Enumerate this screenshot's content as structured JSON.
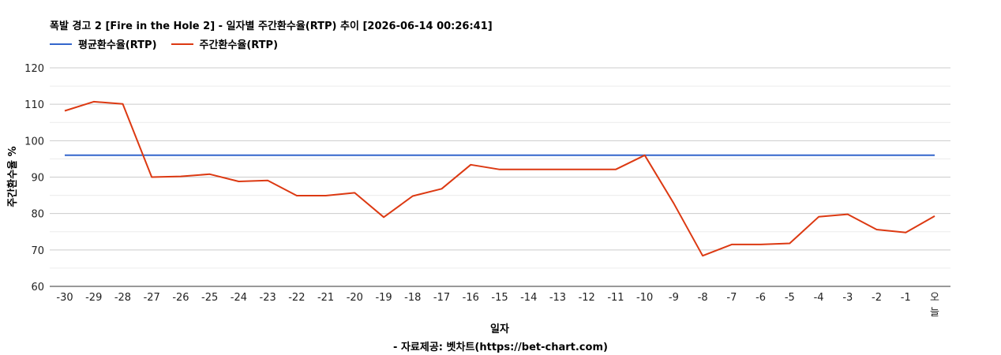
{
  "chart_data": {
    "type": "line",
    "title": "폭발 경고 2 [Fire in the Hole 2] - 일자별 주간환수율(RTP) 추이 [2026-06-14 00:26:41]",
    "xlabel": "일자",
    "ylabel": "주간환수율 %",
    "ylim": [
      60,
      120
    ],
    "yticks": [
      60,
      70,
      80,
      90,
      100,
      110,
      120
    ],
    "grid": true,
    "legend_position": "top-left",
    "categories": [
      "-30",
      "-29",
      "-28",
      "-27",
      "-26",
      "-25",
      "-24",
      "-23",
      "-22",
      "-21",
      "-20",
      "-19",
      "-18",
      "-17",
      "-16",
      "-15",
      "-14",
      "-13",
      "-12",
      "-11",
      "-10",
      "-9",
      "-8",
      "-7",
      "-6",
      "-5",
      "-4",
      "-3",
      "-2",
      "-1",
      "오늘"
    ],
    "series": [
      {
        "name": "평균환수율(RTP)",
        "color": "#3366cc",
        "values": [
          96,
          96,
          96,
          96,
          96,
          96,
          96,
          96,
          96,
          96,
          96,
          96,
          96,
          96,
          96,
          96,
          96,
          96,
          96,
          96,
          96,
          96,
          96,
          96,
          96,
          96,
          96,
          96,
          96,
          96,
          96
        ]
      },
      {
        "name": "주간환수율(RTP)",
        "color": "#dc3912",
        "values": [
          108.2,
          110.7,
          110.1,
          90.0,
          90.2,
          90.8,
          88.8,
          89.1,
          84.9,
          84.9,
          85.7,
          79.0,
          84.8,
          86.8,
          93.4,
          92.1,
          92.1,
          92.1,
          92.1,
          92.1,
          96.0,
          82.8,
          68.4,
          71.5,
          71.5,
          71.8,
          79.1,
          79.8,
          75.6,
          74.8,
          79.3
        ]
      }
    ],
    "source": "- 자료제공: 벳차트(https://bet-chart.com)"
  }
}
